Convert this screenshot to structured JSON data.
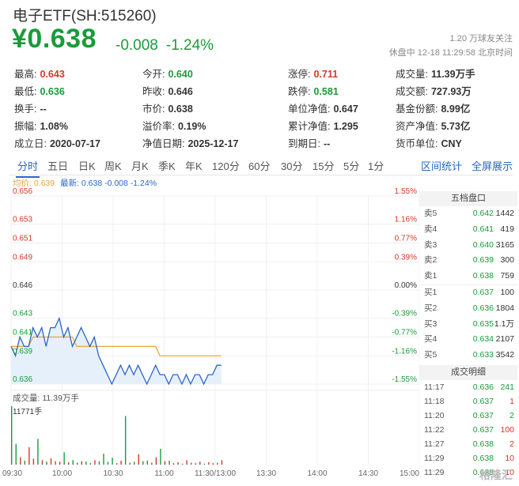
{
  "header": {
    "title": "电子ETF(SH:515260)",
    "price": "¥0.638",
    "change": "-0.008",
    "change_pct": "-1.24%",
    "followers": "1.20 万球友关注",
    "status": "休盘中 12-18 11:29:58 北京时间"
  },
  "stats": [
    {
      "label": "最高:",
      "value": "0.643",
      "color": "red"
    },
    {
      "label": "今开:",
      "value": "0.640",
      "color": "green"
    },
    {
      "label": "涨停:",
      "value": "0.711",
      "color": "red"
    },
    {
      "label": "成交量:",
      "value": "11.39万手",
      "color": ""
    },
    {
      "label": "最低:",
      "value": "0.636",
      "color": "green"
    },
    {
      "label": "昨收:",
      "value": "0.646",
      "color": ""
    },
    {
      "label": "跌停:",
      "value": "0.581",
      "color": "green"
    },
    {
      "label": "成交额:",
      "value": "727.93万",
      "color": ""
    },
    {
      "label": "换手:",
      "value": "--",
      "color": ""
    },
    {
      "label": "市价:",
      "value": "0.638",
      "color": ""
    },
    {
      "label": "单位净值:",
      "value": "0.647",
      "color": ""
    },
    {
      "label": "基金份额:",
      "value": "8.99亿",
      "color": ""
    },
    {
      "label": "振幅:",
      "value": "1.08%",
      "color": ""
    },
    {
      "label": "溢价率:",
      "value": "0.19%",
      "color": ""
    },
    {
      "label": "累计净值:",
      "value": "1.295",
      "color": ""
    },
    {
      "label": "资产净值:",
      "value": "5.73亿",
      "color": ""
    },
    {
      "label": "成立日:",
      "value": "2020-07-17",
      "color": ""
    },
    {
      "label": "净值日期:",
      "value": "2025-12-17",
      "color": ""
    },
    {
      "label": "到期日:",
      "value": "--",
      "color": ""
    },
    {
      "label": "货币单位:",
      "value": "CNY",
      "color": ""
    }
  ],
  "tabs": [
    "分时",
    "五日",
    "日K",
    "周K",
    "月K",
    "季K",
    "年K",
    "120分",
    "60分",
    "30分",
    "15分",
    "5分",
    "1分"
  ],
  "tabs_right": [
    "区间统计",
    "全屏展示"
  ],
  "legend": {
    "avg": "均价: 0.639",
    "last": "最新: 0.638 -0.008 -1.24%"
  },
  "volume_label": "成交量: 11.39万手",
  "volume_max_label": "11771手",
  "order_book": {
    "title": "五档盘口",
    "asks": [
      {
        "label": "卖5",
        "price": "0.642",
        "qty": "1442"
      },
      {
        "label": "卖4",
        "price": "0.641",
        "qty": "419"
      },
      {
        "label": "卖3",
        "price": "0.640",
        "qty": "3165"
      },
      {
        "label": "卖2",
        "price": "0.639",
        "qty": "300"
      },
      {
        "label": "卖1",
        "price": "0.638",
        "qty": "759"
      }
    ],
    "bids": [
      {
        "label": "买1",
        "price": "0.637",
        "qty": "100"
      },
      {
        "label": "买2",
        "price": "0.636",
        "qty": "1804"
      },
      {
        "label": "买3",
        "price": "0.635",
        "qty": "1.1万"
      },
      {
        "label": "买4",
        "price": "0.634",
        "qty": "2107"
      },
      {
        "label": "买5",
        "price": "0.633",
        "qty": "3542"
      }
    ]
  },
  "trades": {
    "title": "成交明细",
    "rows": [
      {
        "time": "11:17",
        "price": "0.636",
        "qty": "241",
        "color": "green"
      },
      {
        "time": "11:18",
        "price": "0.637",
        "qty": "1",
        "color": "red"
      },
      {
        "time": "11:20",
        "price": "0.637",
        "qty": "2",
        "color": "green"
      },
      {
        "time": "11:22",
        "price": "0.637",
        "qty": "100",
        "color": "red"
      },
      {
        "time": "11:27",
        "price": "0.638",
        "qty": "2",
        "color": "red"
      },
      {
        "time": "11:29",
        "price": "0.638",
        "qty": "10",
        "color": "red"
      },
      {
        "time": "11:29",
        "price": "0.638",
        "qty": "10",
        "color": "red"
      }
    ]
  },
  "colors": {
    "up": "#d23a2a",
    "down": "#1a9b3a",
    "price_line": "#2a66c6",
    "avg_line": "#e8a23a",
    "accent": "#2a66c6"
  },
  "watermark": "格隆汇",
  "chart_data": {
    "type": "line",
    "y_ticks": [
      "0.656",
      "0.653",
      "0.651",
      "0.649",
      "0.646",
      "0.643",
      "0.641",
      "0.639",
      "0.636"
    ],
    "y_tick_values": [
      0.656,
      0.653,
      0.651,
      0.649,
      0.646,
      0.643,
      0.641,
      0.639,
      0.636
    ],
    "pct_ticks": [
      "1.55%",
      "1.16%",
      "0.77%",
      "0.39%",
      "0.00%",
      "-0.39%",
      "-0.77%",
      "-1.16%",
      "-1.55%"
    ],
    "x_ticks": [
      "09:30",
      "10:00",
      "10:30",
      "11:00",
      "11:30/13:00",
      "13:30",
      "14:00",
      "14:30",
      "15:00"
    ],
    "ylim": [
      0.636,
      0.656
    ],
    "prev_close": 0.646,
    "price": [
      0.64,
      0.639,
      0.641,
      0.64,
      0.64,
      0.642,
      0.641,
      0.642,
      0.64,
      0.642,
      0.642,
      0.643,
      0.641,
      0.642,
      0.64,
      0.641,
      0.642,
      0.641,
      0.64,
      0.641,
      0.639,
      0.638,
      0.637,
      0.636,
      0.637,
      0.638,
      0.637,
      0.638,
      0.637,
      0.638,
      0.637,
      0.636,
      0.637,
      0.638,
      0.637,
      0.637,
      0.636,
      0.637,
      0.637,
      0.636,
      0.637,
      0.636,
      0.637,
      0.637,
      0.636,
      0.637,
      0.637,
      0.638,
      0.638
    ],
    "avg": [
      0.64,
      0.64,
      0.64,
      0.64,
      0.64,
      0.641,
      0.641,
      0.641,
      0.641,
      0.641,
      0.641,
      0.641,
      0.641,
      0.641,
      0.641,
      0.64,
      0.64,
      0.64,
      0.64,
      0.64,
      0.64,
      0.64,
      0.64,
      0.64,
      0.64,
      0.64,
      0.64,
      0.64,
      0.64,
      0.64,
      0.64,
      0.64,
      0.64,
      0.64,
      0.639,
      0.639,
      0.639,
      0.639,
      0.639,
      0.639,
      0.639,
      0.639,
      0.639,
      0.639,
      0.639,
      0.639,
      0.639,
      0.639,
      0.639
    ],
    "volume": [
      11771,
      4200,
      1500,
      800,
      3500,
      1200,
      5200,
      900,
      600,
      1300,
      700,
      600,
      2500,
      500,
      900,
      400,
      700,
      600,
      300,
      900,
      700,
      2200,
      600,
      1400,
      300,
      800,
      9800,
      400,
      600,
      2100,
      700,
      800,
      400,
      1500,
      3200,
      700,
      800,
      300,
      500,
      200,
      900,
      400,
      300,
      600,
      200,
      500,
      300,
      400,
      900
    ]
  }
}
